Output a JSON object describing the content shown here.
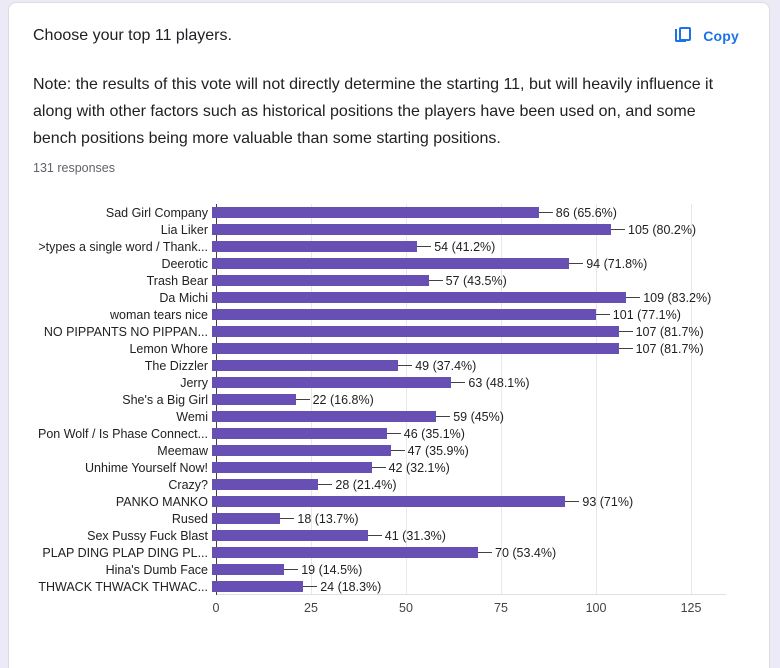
{
  "header": {
    "title": "Choose your top 11 players.",
    "copy_label": "Copy",
    "note": "Note: the results of this vote will not directly determine the starting 11, but will heavily influence it along with other factors such as historical positions the players have been used on, and some bench positions being more valuable than some starting positions.",
    "responses": "131 responses"
  },
  "colors": {
    "bar": "#674fb4",
    "accent_blue": "#1a73e8",
    "page_background": "#eceaf6",
    "card_border": "#dadce0",
    "gridline": "#e8e8e8",
    "axis_line": "#424242"
  },
  "chart_data": {
    "type": "bar",
    "orientation": "horizontal",
    "title": "",
    "xlabel": "",
    "ylabel": "",
    "xlim": [
      0,
      134
    ],
    "x_ticks": [
      0,
      25,
      50,
      75,
      100,
      125
    ],
    "grid": true,
    "legend": false,
    "categories": [
      "Sad Girl Company",
      "Lia Liker",
      ">types a single word / Thank...",
      "Deerotic",
      "Trash Bear",
      "Da Michi",
      "woman tears nice",
      "NO PIPPANTS NO PIPPAN...",
      "Lemon Whore",
      "The Dizzler",
      "Jerry",
      "She's a Big Girl",
      "Wemi",
      "Pon Wolf / Is Phase Connect...",
      "Meemaw",
      "Unhime Yourself Now!",
      "Crazy?",
      "PANKO MANKO",
      "Rused",
      "Sex Pussy Fuck Blast",
      "PLAP DING PLAP DING PL...",
      "Hina's Dumb Face",
      "THWACK THWACK THWAC..."
    ],
    "values": [
      86,
      105,
      54,
      94,
      57,
      109,
      101,
      107,
      107,
      49,
      63,
      22,
      59,
      46,
      47,
      42,
      28,
      93,
      18,
      41,
      70,
      19,
      24
    ],
    "value_labels": [
      "86 (65.6%)",
      "105 (80.2%)",
      "54 (41.2%)",
      "94 (71.8%)",
      "57 (43.5%)",
      "109 (83.2%)",
      "101 (77.1%)",
      "107 (81.7%)",
      "107 (81.7%)",
      "49 (37.4%)",
      "63 (48.1%)",
      "22 (16.8%)",
      "59 (45%)",
      "46 (35.1%)",
      "47 (35.9%)",
      "42 (32.1%)",
      "28 (21.4%)",
      "93 (71%)",
      "18 (13.7%)",
      "41 (31.3%)",
      "70 (53.4%)",
      "19 (14.5%)",
      "24 (18.3%)"
    ]
  }
}
